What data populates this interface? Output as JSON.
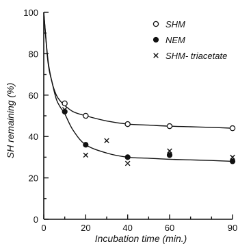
{
  "chart_data": {
    "type": "scatter",
    "title": "",
    "xlabel": "Incubation time (min.)",
    "ylabel": "SH remaining (%)",
    "xlim": [
      0,
      90
    ],
    "ylim": [
      0,
      100
    ],
    "x_ticks": [
      0,
      20,
      40,
      60,
      90
    ],
    "y_ticks": [
      0,
      20,
      40,
      60,
      80,
      100
    ],
    "x_minor_ticks": [
      10,
      30,
      50,
      70,
      80
    ],
    "y_minor_ticks": [
      10,
      30,
      50,
      70,
      90
    ],
    "grid": false,
    "legend_position": "top-right",
    "series": [
      {
        "name": "SHM",
        "marker": "open-circle",
        "x": [
          10,
          20,
          40,
          60,
          90
        ],
        "y": [
          56,
          50,
          46,
          45,
          44
        ],
        "fit_curve": {
          "x": [
            0,
            2,
            4,
            6,
            8,
            10,
            14,
            20,
            30,
            40,
            50,
            60,
            70,
            80,
            90
          ],
          "y": [
            100,
            77,
            66,
            60,
            57,
            55,
            52,
            50,
            47.5,
            46,
            45.5,
            45,
            44.7,
            44.4,
            44
          ]
        }
      },
      {
        "name": "NEM",
        "marker": "filled-circle",
        "x": [
          10,
          20,
          40,
          60,
          90
        ],
        "y": [
          52,
          36,
          30,
          31,
          28
        ],
        "fit_curve": {
          "x": [
            0,
            2,
            4,
            6,
            8,
            10,
            14,
            20,
            30,
            40,
            50,
            60,
            70,
            80,
            90
          ],
          "y": [
            100,
            76,
            66,
            58,
            54,
            51,
            43,
            36,
            32,
            30,
            29.5,
            29,
            28.7,
            28.4,
            28
          ]
        }
      },
      {
        "name": "SHM- triacetate",
        "marker": "cross",
        "x": [
          10,
          20,
          30,
          40,
          60,
          90
        ],
        "y": [
          53,
          31,
          38,
          27,
          33,
          30
        ]
      }
    ]
  }
}
